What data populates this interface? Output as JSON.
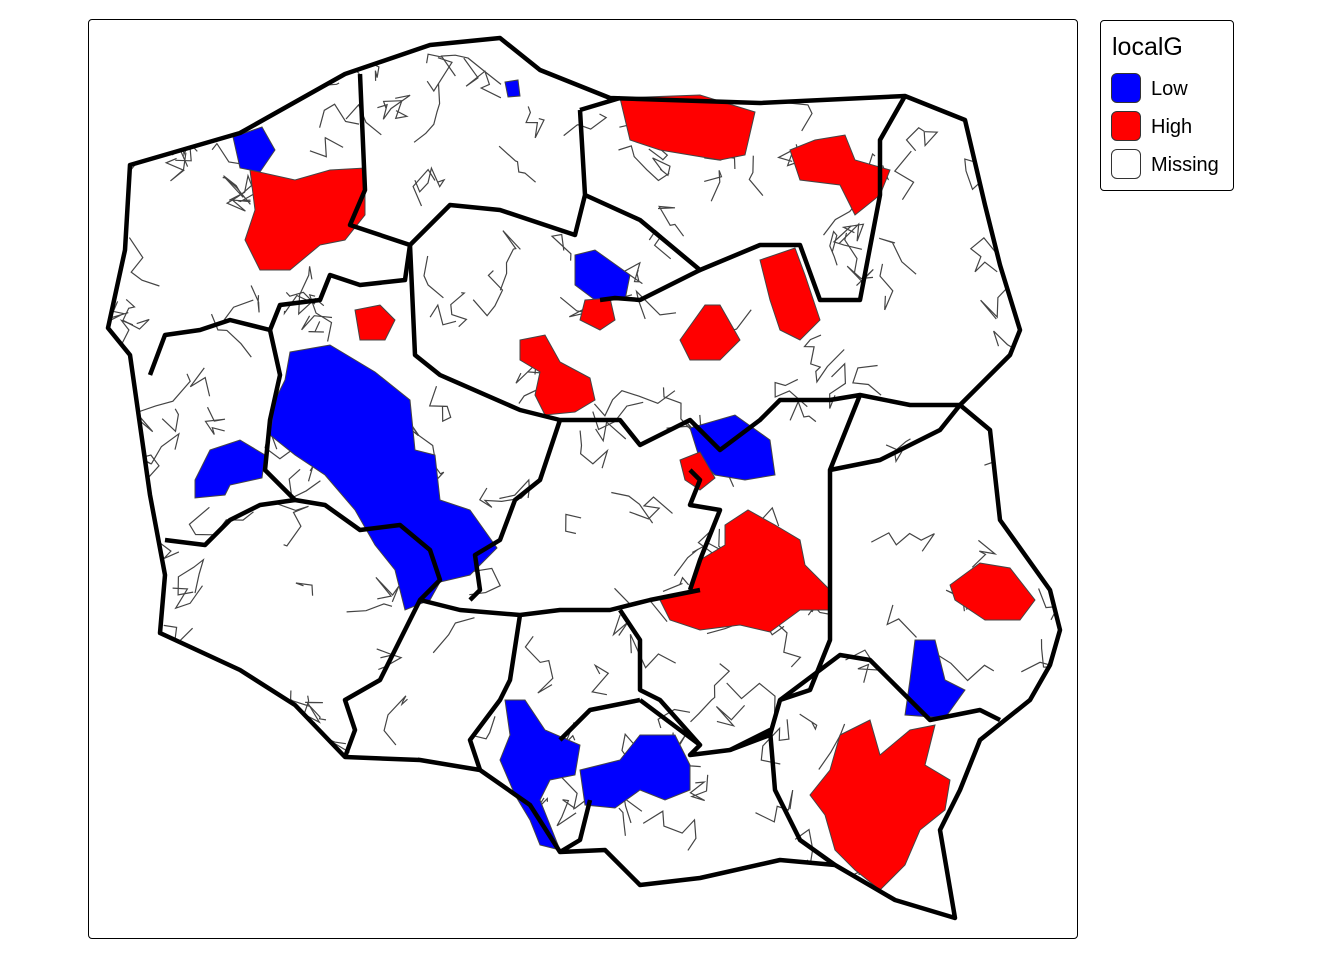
{
  "legend": {
    "title": "localG",
    "items": [
      {
        "label": "Low",
        "color": "#0000ff"
      },
      {
        "label": "High",
        "color": "#ff0000"
      },
      {
        "label": "Missing",
        "color": "#ffffff"
      }
    ]
  },
  "colors": {
    "low": "#0000ff",
    "high": "#ff0000",
    "missing": "#ffffff",
    "region_border": "#000000",
    "district_border": "#444444"
  }
}
